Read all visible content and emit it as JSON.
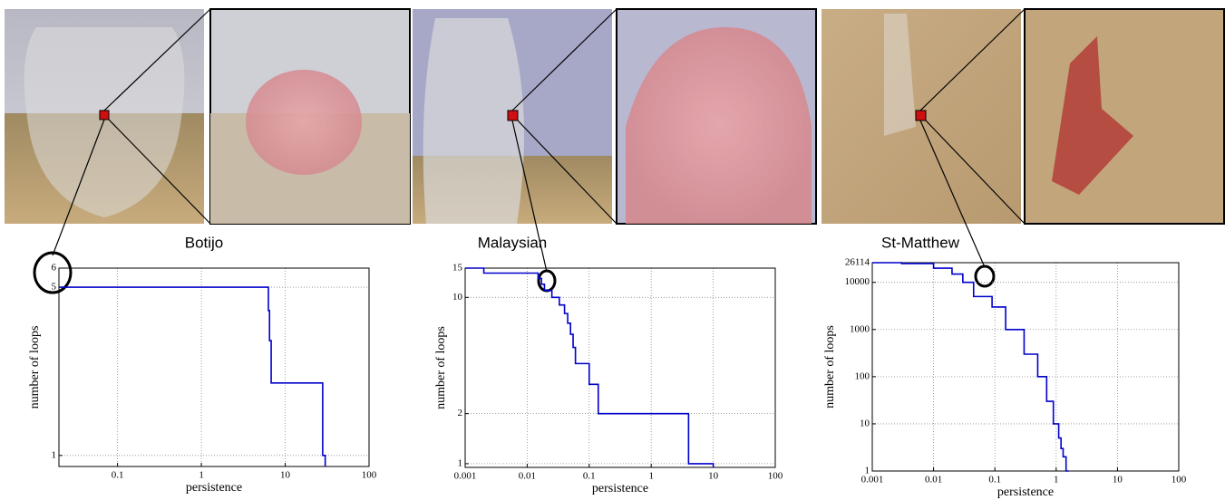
{
  "chart_data": [
    {
      "type": "step",
      "title": "Botijo",
      "xlabel": "persistence",
      "ylabel": "number of loops",
      "xlog": true,
      "ylog": true,
      "grid": true,
      "color": "#0000cc",
      "xlim": [
        0.02,
        100
      ],
      "xticks": [
        0.1,
        1,
        10,
        100
      ],
      "ylim": [
        0.9,
        6
      ],
      "yticks": [
        1,
        5,
        6
      ],
      "x": [
        6.3,
        6.5,
        6.8,
        28,
        30
      ],
      "values": [
        5,
        4,
        3,
        2,
        1
      ]
    },
    {
      "type": "step",
      "title": "Malaysian",
      "xlabel": "persistence",
      "ylabel": "number of loops",
      "xlog": true,
      "ylog": true,
      "grid": true,
      "color": "#0000cc",
      "xlim": [
        0.001,
        100
      ],
      "xticks": [
        0.001,
        0.01,
        0.1,
        1,
        10,
        100
      ],
      "ylim": [
        0.95,
        15
      ],
      "yticks": [
        1,
        2,
        10,
        15
      ],
      "x": [
        0.002,
        0.015,
        0.017,
        0.019,
        0.025,
        0.033,
        0.04,
        0.045,
        0.05,
        0.055,
        0.06,
        0.1,
        0.14,
        4,
        10
      ],
      "values": [
        15,
        14,
        13,
        12,
        11,
        10,
        9,
        8,
        7,
        6,
        5,
        4,
        3,
        2,
        1
      ]
    },
    {
      "type": "step",
      "title": "St-Matthew",
      "xlabel": "persistence",
      "ylabel": "number of loops",
      "xlog": true,
      "ylog": true,
      "grid": true,
      "color": "#0000cc",
      "xlim": [
        0.001,
        100
      ],
      "xticks": [
        0.001,
        0.01,
        0.1,
        1,
        10,
        100
      ],
      "ylim": [
        1,
        26114
      ],
      "yticks": [
        1,
        10,
        100,
        1000,
        10000,
        26114
      ],
      "x": [
        0.003,
        0.01,
        0.02,
        0.03,
        0.045,
        0.09,
        0.15,
        0.3,
        0.5,
        0.7,
        0.9,
        1.1,
        1.2,
        1.3,
        1.45,
        1.6
      ],
      "values": [
        26114,
        25000,
        20000,
        15000,
        10000,
        5000,
        3000,
        1000,
        300,
        100,
        30,
        10,
        5,
        3,
        2,
        1
      ]
    }
  ]
}
